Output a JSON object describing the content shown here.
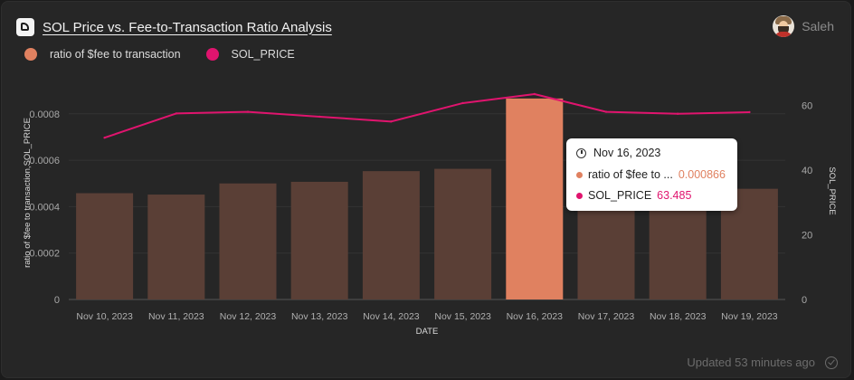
{
  "header": {
    "title": "SOL Price vs. Fee-to-Transaction Ratio Analysis"
  },
  "user": {
    "name": "Saleh"
  },
  "colors": {
    "bar": "#5a3f36",
    "bar_highlight": "#e08160",
    "line": "#e0146e",
    "legend_bar": "#e08160"
  },
  "chart_data": {
    "type": "bar",
    "title": "",
    "xlabel": "DATE",
    "ylabel": "ratio of $fee to transaction,SOL_PRICE",
    "y2label": "SOL_PRICE",
    "categories": [
      "Nov 10, 2023",
      "Nov 11, 2023",
      "Nov 12, 2023",
      "Nov 13, 2023",
      "Nov 14, 2023",
      "Nov 15, 2023",
      "Nov 16, 2023",
      "Nov 17, 2023",
      "Nov 18, 2023",
      "Nov 19, 2023"
    ],
    "ylim": [
      0,
      0.00092
    ],
    "y2lim": [
      0,
      66
    ],
    "yticks": [
      "0",
      "0.0002",
      "0.0004",
      "0.0006",
      "0.0008"
    ],
    "y2ticks": [
      "0",
      "20",
      "40",
      "60"
    ],
    "series": [
      {
        "name": "ratio of $fee to transaction",
        "type": "bar",
        "axis": "left",
        "values": [
          0.000458,
          0.000452,
          0.0005,
          0.000507,
          0.000553,
          0.000563,
          0.000866,
          0.000505,
          0.000508,
          0.000477
        ]
      },
      {
        "name": "SOL_PRICE",
        "type": "line",
        "axis": "right",
        "values": [
          50.0,
          57.5,
          58.0,
          56.5,
          55.0,
          60.7,
          63.485,
          58.0,
          57.4,
          57.9
        ]
      }
    ],
    "highlight_index": 6,
    "legend_position": "top-left",
    "grid": true
  },
  "tooltip": {
    "date": "Nov 16, 2023",
    "rows": [
      {
        "label": "ratio of $fee to ...",
        "value": "0.000866",
        "color": "#e08160"
      },
      {
        "label": "SOL_PRICE",
        "value": "63.485",
        "color": "#e0146e"
      }
    ]
  },
  "footer": {
    "updated": "Updated 53 minutes ago"
  }
}
